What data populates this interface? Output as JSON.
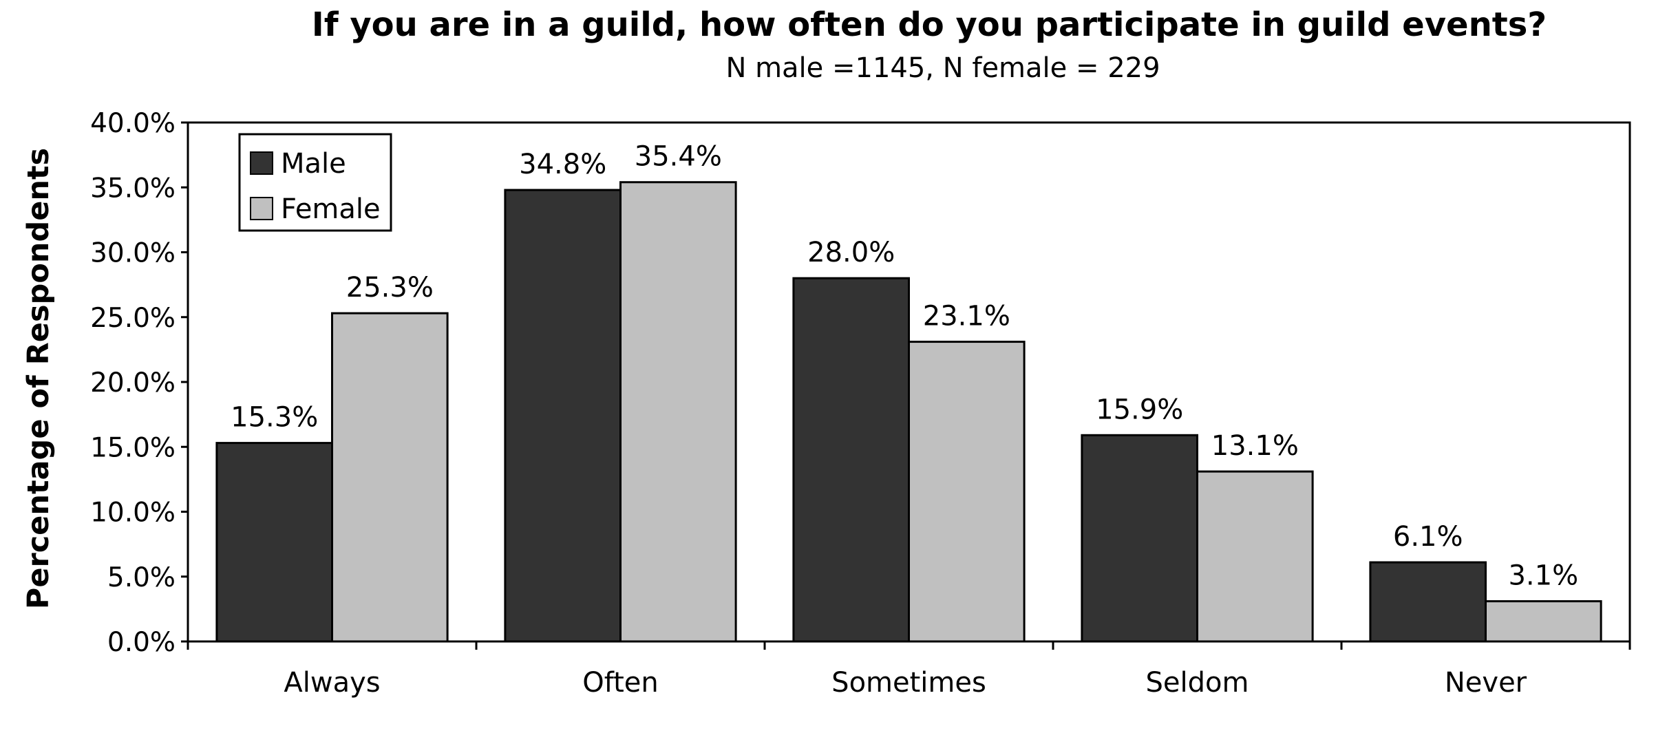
{
  "chart_data": {
    "type": "bar",
    "title": "If you are in a guild, how often do you participate in guild events?",
    "subtitle": "N male =1145, N female = 229",
    "xlabel": "",
    "ylabel": "Percentage of Respondents",
    "ylim": [
      0,
      40
    ],
    "ytick_step": 5,
    "ytick_labels": [
      "0.0%",
      "5.0%",
      "10.0%",
      "15.0%",
      "20.0%",
      "25.0%",
      "30.0%",
      "35.0%",
      "40.0%"
    ],
    "categories": [
      "Always",
      "Often",
      "Sometimes",
      "Seldom",
      "Never"
    ],
    "series": [
      {
        "name": "Male",
        "color": "#333333",
        "values": [
          15.3,
          34.8,
          28.0,
          15.9,
          6.1
        ],
        "labels": [
          "15.3%",
          "34.8%",
          "28.0%",
          "15.9%",
          "6.1%"
        ]
      },
      {
        "name": "Female",
        "color": "#c0c0c0",
        "values": [
          25.3,
          35.4,
          23.1,
          13.1,
          3.1
        ],
        "labels": [
          "25.3%",
          "35.4%",
          "23.1%",
          "13.1%",
          "3.1%"
        ]
      }
    ],
    "grid": false,
    "legend_position": "top-left"
  }
}
